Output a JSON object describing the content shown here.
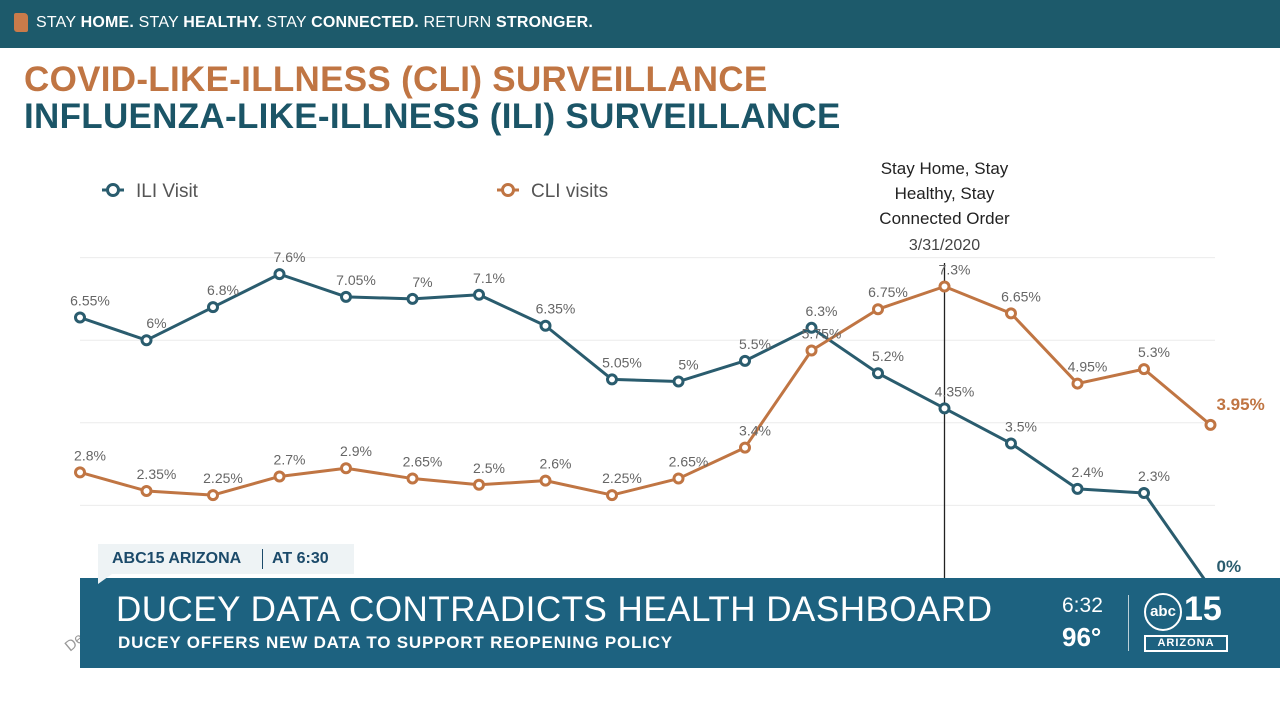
{
  "banner": {
    "parts": [
      {
        "text": "STAY ",
        "bold": false
      },
      {
        "text": "HOME.",
        "bold": true
      },
      {
        "text": " STAY ",
        "bold": false
      },
      {
        "text": "HEALTHY.",
        "bold": true
      },
      {
        "text": " STAY ",
        "bold": false
      },
      {
        "text": "CONNECTED.",
        "bold": true
      },
      {
        "text": " RETURN ",
        "bold": false
      },
      {
        "text": "STRONGER.",
        "bold": true
      }
    ],
    "icon": "arizona-state-icon",
    "color": "#1d5a6b"
  },
  "slide": {
    "title_line1": "COVID-LIKE-ILLNESS (CLI) SURVEILLANCE",
    "title_line2": "INFLUENZA-LIKE-ILLNESS (ILI) SURVEILLANCE"
  },
  "chart_data": {
    "type": "line",
    "legend_position": "top-left",
    "grid": true,
    "ylim": [
      0,
      8
    ],
    "x_labels_visible": [
      "Dece"
    ],
    "series": [
      {
        "name": "ILI Visit",
        "color": "#2a5c6e",
        "values": [
          6.55,
          6,
          6.8,
          7.6,
          7.05,
          7,
          7.1,
          6.35,
          5.05,
          5,
          5.5,
          6.3,
          5.2,
          4.35,
          3.5,
          2.4,
          2.3,
          0
        ],
        "labels": [
          "6.55%",
          "6%",
          "6.8%",
          "7.6%",
          "7.05%",
          "7%",
          "7.1%",
          "6.35%",
          "5.05%",
          "5%",
          "5.5%",
          "6.3%",
          "5.2%",
          "4.35%",
          "3.5%",
          "2.4%",
          "2.3%",
          "0%"
        ]
      },
      {
        "name": "CLI visits",
        "color": "#c07543",
        "values": [
          2.8,
          2.35,
          2.25,
          2.7,
          2.9,
          2.65,
          2.5,
          2.6,
          2.25,
          2.65,
          3.4,
          5.75,
          6.75,
          7.3,
          6.65,
          4.95,
          5.3,
          3.95
        ],
        "labels": [
          "2.8%",
          "2.35%",
          "2.25%",
          "2.7%",
          "2.9%",
          "2.65%",
          "2.5%",
          "2.6%",
          "2.25%",
          "2.65%",
          "3.4%",
          "5.75%",
          "6.75%",
          "7.3%",
          "6.65%",
          "4.95%",
          "5.3%",
          "3.95%"
        ]
      }
    ],
    "annotation": {
      "lines": [
        "Stay Home, Stay",
        "Healthy,  Stay",
        "Connected Order"
      ],
      "date": "3/31/2020",
      "at_index": 13
    }
  },
  "lower_third": {
    "network": "ABC15 ARIZONA",
    "time_slot": "AT 6:30",
    "headline": "DUCEY DATA CONTRADICTS HEALTH DASHBOARD",
    "subhead": "DUCEY OFFERS NEW DATA TO SUPPORT REOPENING POLICY",
    "clock": "6:32",
    "temperature": "96°",
    "logo_abc": "abc",
    "logo_number": "15",
    "logo_region": "ARIZONA",
    "color": "#1d6280"
  }
}
